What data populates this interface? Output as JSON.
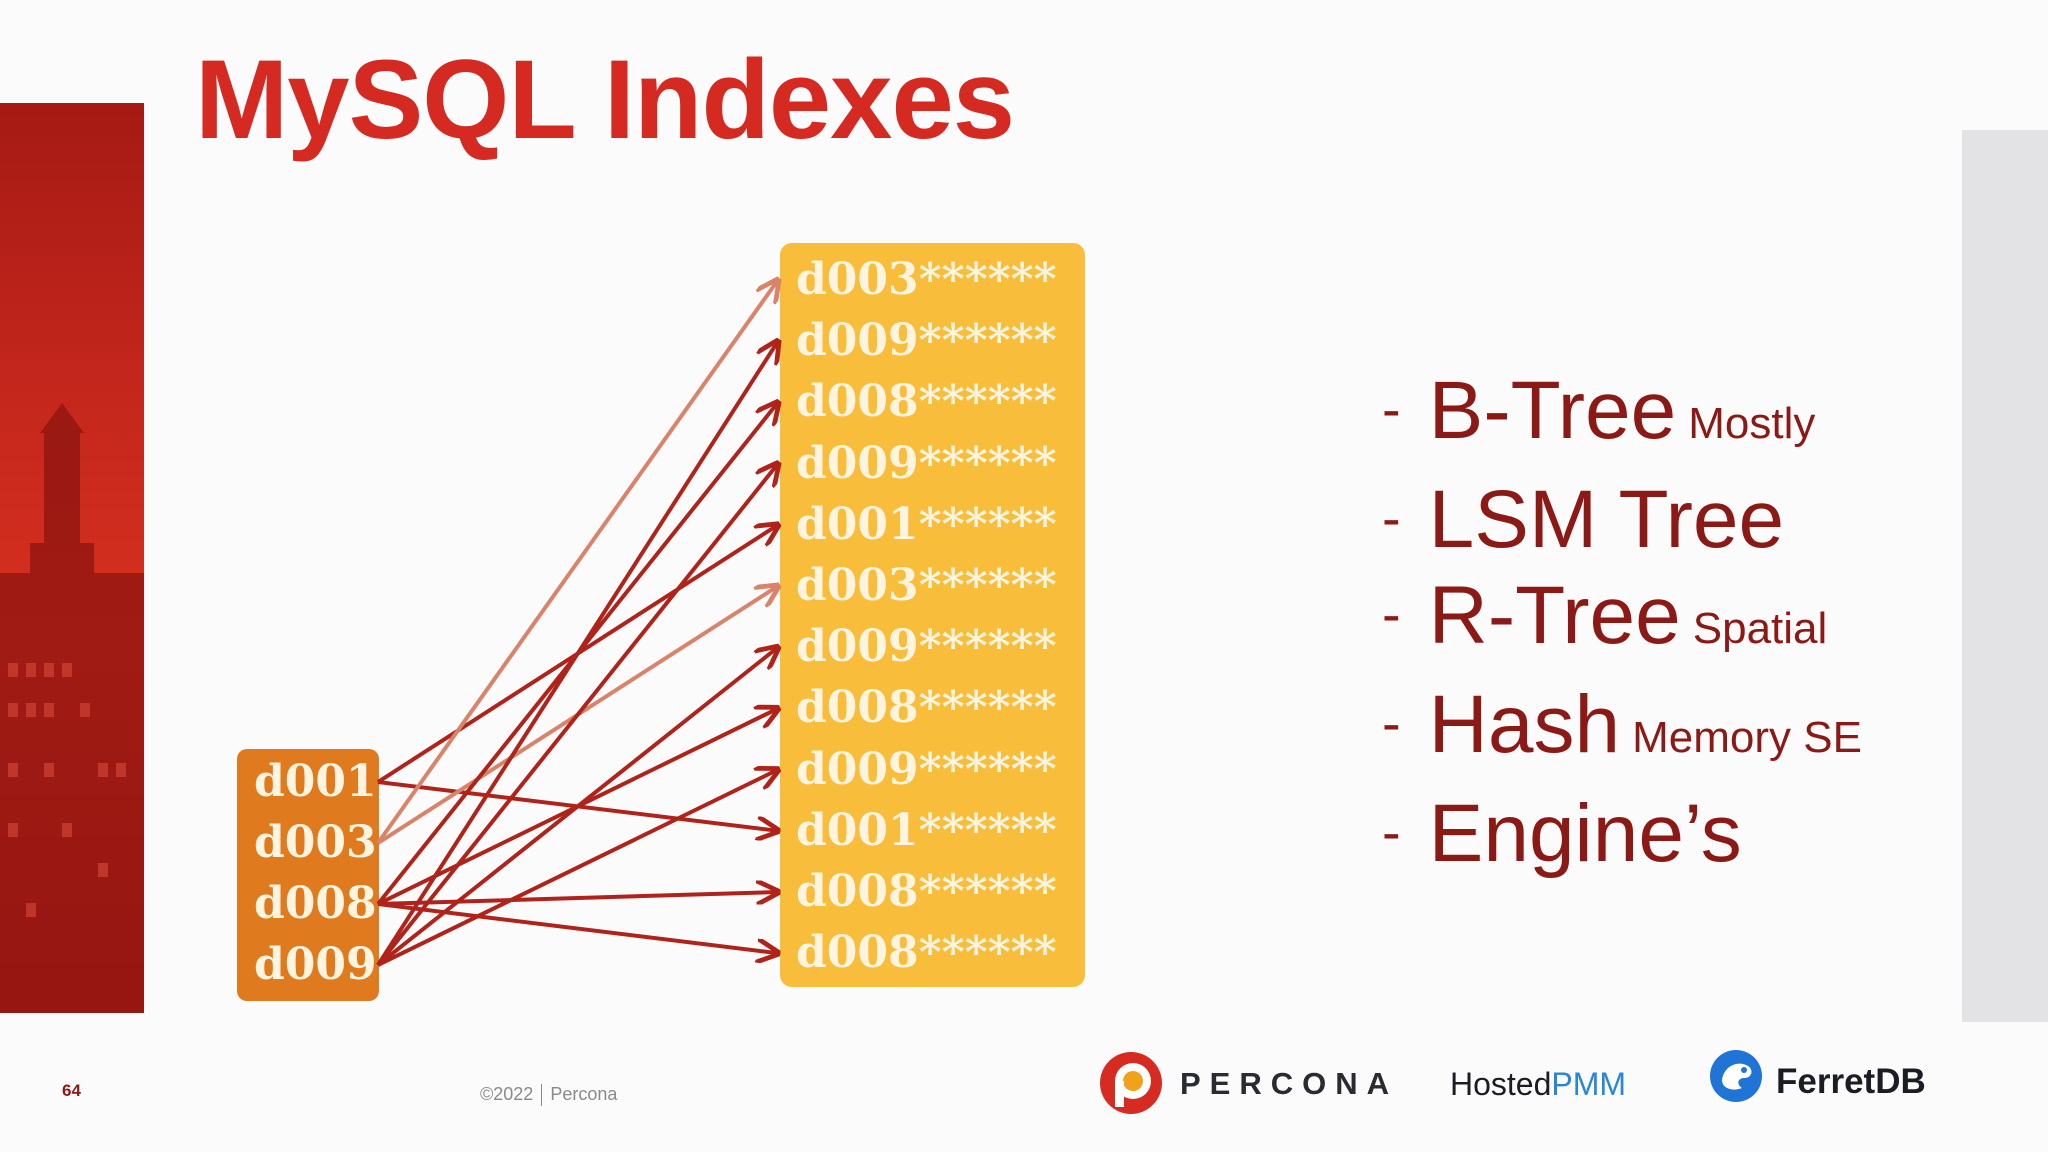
{
  "slide": {
    "title": "MySQL Indexes",
    "page_number": "64",
    "copyright": "©2022",
    "copyright_owner": "Percona"
  },
  "diagram": {
    "source_keys": [
      "d001",
      "d003",
      "d008",
      "d009"
    ],
    "target_rows": [
      "d003******",
      "d009******",
      "d008******",
      "d009******",
      "d001******",
      "d003******",
      "d009******",
      "d008******",
      "d009******",
      "d001******",
      "d008******",
      "d008******"
    ]
  },
  "bullets": [
    {
      "dash": "-",
      "label": "B-Tree",
      "note": "Mostly"
    },
    {
      "dash": "-",
      "label": "LSM Tree",
      "note": ""
    },
    {
      "dash": "-",
      "label": "R-Tree",
      "note": "Spatial"
    },
    {
      "dash": "-",
      "label": "Hash",
      "note": "Memory SE"
    },
    {
      "dash": "-",
      "label": "Engine’s",
      "note": ""
    }
  ],
  "logos": {
    "percona": "PERCONA",
    "hosted_prefix": "Hosted",
    "hosted_suffix": "PMM",
    "ferretdb": "FerretDB"
  },
  "colors": {
    "title": "#d42a21",
    "source_box": "#e07a1f",
    "target_box": "#f7bd3b",
    "bullet_text": "#8b1a16",
    "arrow_dark": "#b0231a",
    "arrow_light": "#d9836a"
  }
}
